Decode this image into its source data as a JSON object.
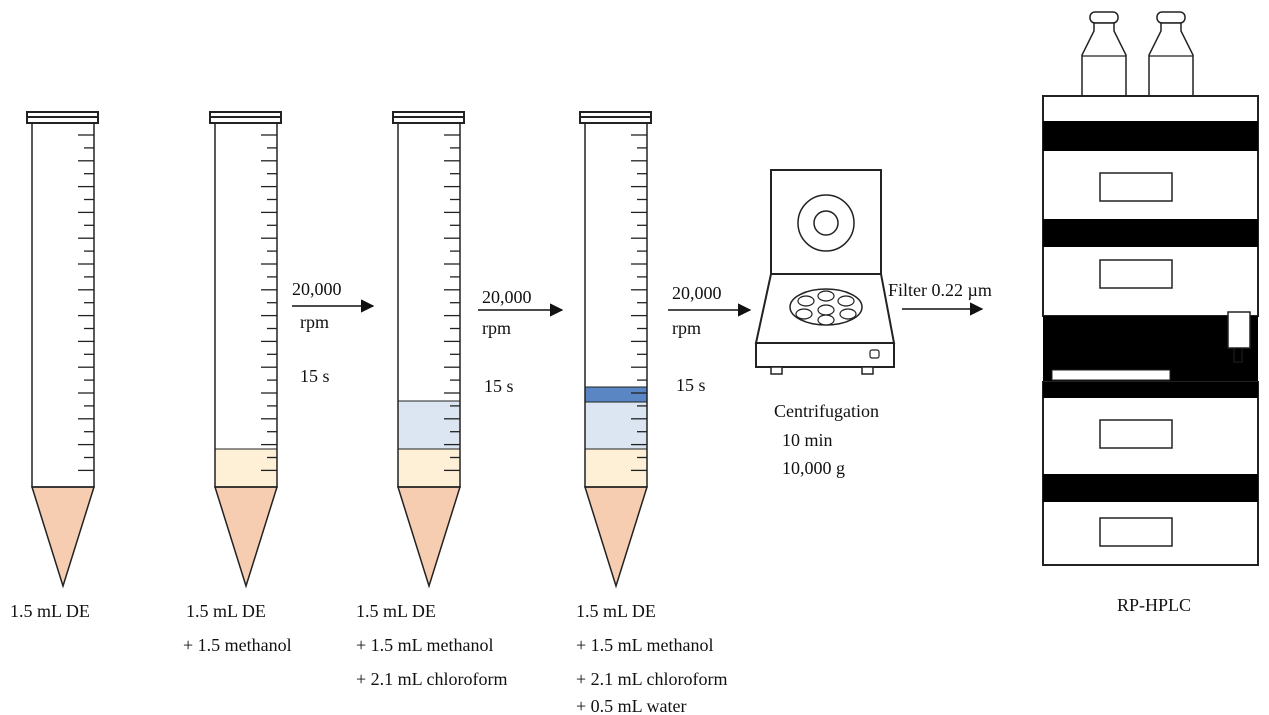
{
  "tubes": [
    {
      "caption": [
        "1.5 mL  DE"
      ]
    },
    {
      "caption": [
        "1.5 mL  DE",
        "+ 1.5 methanol"
      ]
    },
    {
      "caption": [
        "1.5 mL  DE",
        "+ 1.5 mL  methanol",
        "+ 2.1 mL  chloroform"
      ]
    },
    {
      "caption": [
        "1.5 mL  DE",
        "+ 1.5 mL  methanol",
        "+ 2.1 mL  chloroform",
        "+ 0.5 mL  water"
      ]
    }
  ],
  "steps": [
    {
      "speed": "20,000",
      "unit": "rpm",
      "time": "15 s"
    },
    {
      "speed": "20,000",
      "unit": "rpm",
      "time": "15 s"
    },
    {
      "speed": "20,000",
      "unit": "rpm",
      "time": "15 s"
    }
  ],
  "centrifuge": {
    "title": "Centrifugation",
    "time": "10 min",
    "force": "10,000 g"
  },
  "filter": {
    "label": "Filter  0.22 µm"
  },
  "hplc": {
    "label": "RP-HPLC"
  },
  "colors": {
    "sample_DE": "#f6cdb1",
    "methanol_layer": "#fdf0d6",
    "chloroform_layer": "#dbe6f2",
    "water_layer": "#5b86c4",
    "outline": "#222222",
    "hplc_band": "#000000"
  }
}
